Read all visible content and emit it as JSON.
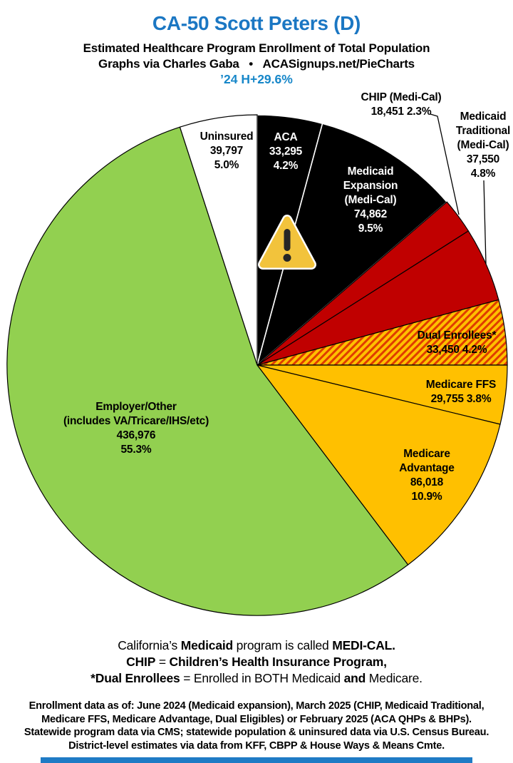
{
  "header": {
    "title": "CA-50 Scott Peters (D)",
    "title_color": "#1B77C3",
    "subtitle1": "Estimated Healthcare Program Enrollment of Total Population",
    "subtitle2": "Graphs via Charles Gaba   •   ACASignups.net/PieCharts",
    "delta_line": "’24 H+29.6%",
    "delta_color": "#1787C9"
  },
  "chart_data": {
    "type": "pie",
    "title": "Estimated Healthcare Program Enrollment of Total Population",
    "start_angle_deg": 0,
    "direction": "clockwise",
    "legend_position": "labels-on-slices",
    "hatch": {
      "base": "#FFC000",
      "stripe": "#E03C00"
    },
    "slices": [
      {
        "id": "aca",
        "label": "ACA",
        "value": 33295,
        "pct": 4.2,
        "color": "#000000",
        "stroke": "#FFFFFF",
        "text_color": "#FFFFFF",
        "label_lines": [
          "ACA",
          "33,295",
          "4.2%"
        ]
      },
      {
        "id": "medicaid-expansion",
        "label": "Medicaid Expansion (Medi-Cal)",
        "value": 74862,
        "pct": 9.5,
        "color": "#000000",
        "stroke": "#FFFFFF",
        "text_color": "#FFFFFF",
        "label_lines": [
          "Medicaid",
          "Expansion",
          "(Medi-Cal)",
          "74,862",
          "9.5%"
        ]
      },
      {
        "id": "chip",
        "label": "CHIP (Medi-Cal)",
        "value": 18451,
        "pct": 2.3,
        "color": "#C00000",
        "stroke": "#000000",
        "text_color": "#000000",
        "label_outside": true,
        "label_lines": [
          "CHIP (Medi-Cal)",
          "18,451 2.3%"
        ]
      },
      {
        "id": "medicaid-traditional",
        "label": "Medicaid Traditional (Medi-Cal)",
        "value": 37550,
        "pct": 4.8,
        "color": "#C00000",
        "stroke": "#000000",
        "text_color": "#000000",
        "label_outside": true,
        "label_lines": [
          "Medicaid",
          "Traditional",
          "(Medi-Cal)",
          "37,550",
          "4.8%"
        ]
      },
      {
        "id": "dual-enrollees",
        "label": "Dual Enrollees*",
        "value": 33450,
        "pct": 4.2,
        "color": "#FFC000",
        "stroke": "#000000",
        "text_color": "#000000",
        "hatched": true,
        "label_lines": [
          "Dual Enrollees*",
          "33,450 4.2%"
        ]
      },
      {
        "id": "medicare-ffs",
        "label": "Medicare FFS",
        "value": 29755,
        "pct": 3.8,
        "color": "#FFC000",
        "stroke": "#000000",
        "text_color": "#000000",
        "label_lines": [
          "Medicare FFS",
          "29,755 3.8%"
        ]
      },
      {
        "id": "medicare-advantage",
        "label": "Medicare Advantage",
        "value": 86018,
        "pct": 10.9,
        "color": "#FFC000",
        "stroke": "#000000",
        "text_color": "#000000",
        "label_lines": [
          "Medicare",
          "Advantage",
          "86,018",
          "10.9%"
        ]
      },
      {
        "id": "employer-other",
        "label": "Employer/Other (includes VA/Tricare/IHS/etc)",
        "value": 436976,
        "pct": 55.3,
        "color": "#92D050",
        "stroke": "#000000",
        "text_color": "#000000",
        "label_lines": [
          "Employer/Other",
          "(includes VA/Tricare/IHS/etc)",
          "436,976",
          "55.3%"
        ]
      },
      {
        "id": "uninsured",
        "label": "Uninsured",
        "value": 39797,
        "pct": 5.0,
        "color": "#FFFFFF",
        "stroke": "#000000",
        "text_color": "#000000",
        "label_lines": [
          "Uninsured",
          "39,797",
          "5.0%"
        ]
      }
    ],
    "warning_icon": {
      "fill": "#F2C33C",
      "mark": "#262626"
    }
  },
  "footnotes": {
    "line1": {
      "s0": "California’s ",
      "s1": "Medicaid",
      "s2": " program is called ",
      "s3": "MEDI-CAL."
    },
    "line2": {
      "s0": "CHIP",
      "s1": " = ",
      "s2": "Children’s Health Insurance Program,"
    },
    "line3": {
      "s0": "*Dual Enrollees",
      "s1": " = Enrolled in BOTH Medicaid ",
      "s2": "and",
      "s3": " Medicare."
    }
  },
  "source_notes": {
    "line1": "Enrollment data as of: June 2024 (Medicaid expansion), March 2025 (CHIP, Medicaid Traditional,",
    "line2": "Medicare FFS, Medicare Advantage, Dual Eligibles) or February 2025 (ACA QHPs & BHPs).",
    "line3": "Statewide program data via CMS; statewide population & uninsured data via U.S. Census Bureau.",
    "line4": "District-level estimates via data from KFF, CBPP & House Ways & Means Cmte."
  },
  "accent_bar_color": "#1F7BC5"
}
